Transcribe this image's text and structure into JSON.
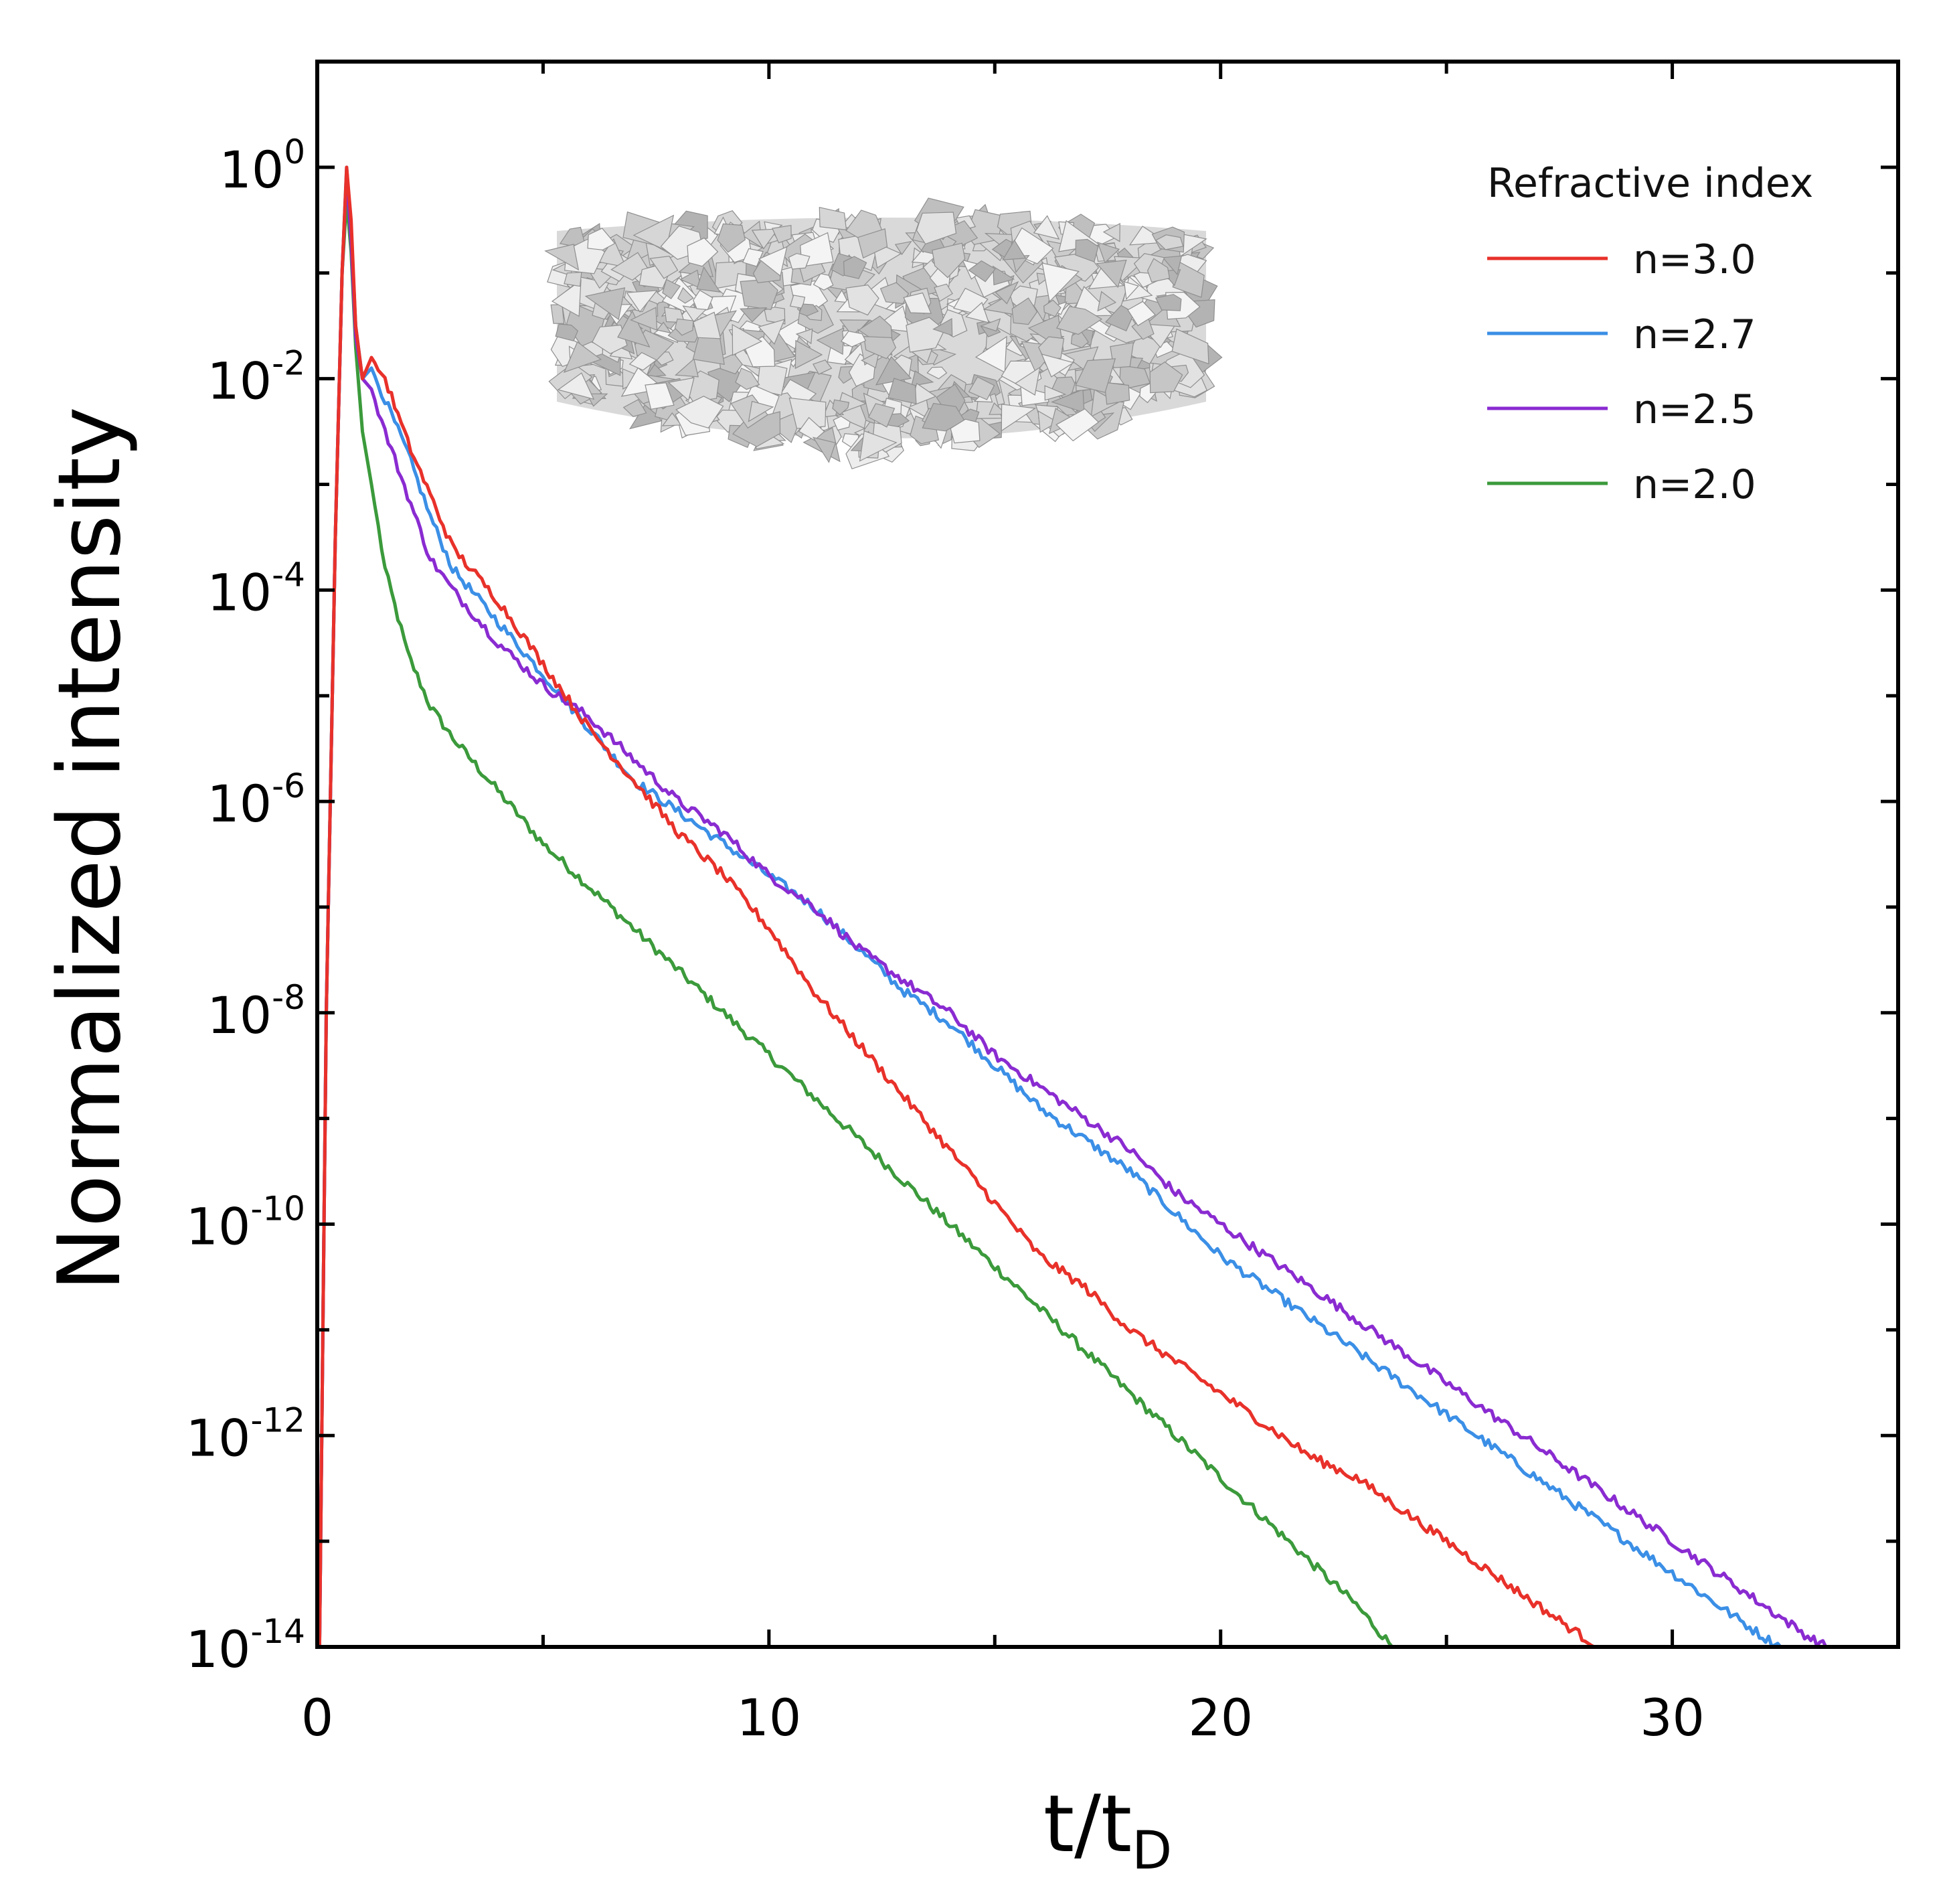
{
  "chart_data": {
    "type": "line",
    "title": "",
    "xlabel": "t/t",
    "xlabel_subscript": "D",
    "ylabel": "Normalized intensity",
    "xlim": [
      0,
      35
    ],
    "ylim_log10": [
      -14,
      1
    ],
    "y_scale": "log",
    "x_ticks": [
      0,
      10,
      20,
      30
    ],
    "x_tick_labels": [
      "0",
      "10",
      "20",
      "30"
    ],
    "y_tick_exponents": [
      0,
      -2,
      -4,
      -6,
      -8,
      -10,
      -12,
      -14
    ],
    "y_tick_base": "10",
    "y_tick_sup": [
      "0",
      "-2",
      "-4",
      "-6",
      "-8",
      "-10",
      "-12",
      "-14"
    ],
    "legend": {
      "title": "Refractive index",
      "position": "top-right"
    },
    "inset": "three-dimensional rendering of a disordered slab of packed polyhedral scatterers",
    "series": [
      {
        "name": "n=3.0",
        "color": "#e8312a",
        "x": [
          0.05,
          0.2,
          0.4,
          0.55,
          0.65,
          0.75,
          0.85,
          1.0,
          1.2,
          1.5,
          2.0,
          2.5,
          3.0,
          4.0,
          5.0,
          6.0,
          7.0,
          8.0,
          9.0,
          10.0,
          11.0,
          12.0,
          13.0,
          14.0,
          15.0,
          16.0,
          17.0,
          18.0,
          19.0,
          20.0,
          21.0,
          22.0,
          23.0,
          24.0,
          25.0,
          26.0,
          27.0,
          28.0,
          28.4
        ],
        "log10_y": [
          -14.0,
          -8.0,
          -3.5,
          -1.0,
          0.0,
          -0.5,
          -1.5,
          -2.0,
          -1.8,
          -2.0,
          -2.6,
          -3.1,
          -3.6,
          -4.1,
          -4.7,
          -5.3,
          -5.8,
          -6.3,
          -6.7,
          -7.2,
          -7.8,
          -8.3,
          -8.8,
          -9.3,
          -9.8,
          -10.3,
          -10.6,
          -11.0,
          -11.3,
          -11.6,
          -11.9,
          -12.2,
          -12.4,
          -12.7,
          -13.0,
          -13.3,
          -13.6,
          -13.9,
          -14.0
        ]
      },
      {
        "name": "n=2.7",
        "color": "#3b8fe6",
        "x": [
          0.05,
          0.2,
          0.4,
          0.55,
          0.65,
          0.75,
          0.85,
          1.0,
          1.2,
          1.5,
          2.0,
          2.5,
          3.0,
          4.0,
          5.0,
          6.0,
          7.0,
          8.0,
          9.0,
          10.0,
          11.0,
          12.0,
          13.0,
          14.0,
          15.0,
          16.0,
          17.0,
          18.0,
          19.0,
          20.0,
          21.0,
          22.0,
          23.0,
          24.0,
          25.0,
          26.0,
          27.0,
          28.0,
          29.0,
          30.0,
          31.0,
          32.0,
          32.4
        ],
        "log10_y": [
          -14.0,
          -8.0,
          -3.5,
          -1.0,
          0.0,
          -0.6,
          -1.5,
          -2.0,
          -1.9,
          -2.2,
          -2.7,
          -3.3,
          -3.8,
          -4.3,
          -4.8,
          -5.3,
          -5.8,
          -6.1,
          -6.4,
          -6.7,
          -7.0,
          -7.4,
          -7.8,
          -8.1,
          -8.5,
          -8.9,
          -9.2,
          -9.5,
          -9.9,
          -10.3,
          -10.6,
          -10.9,
          -11.2,
          -11.5,
          -11.8,
          -12.1,
          -12.4,
          -12.7,
          -13.0,
          -13.3,
          -13.6,
          -13.9,
          -14.0
        ]
      },
      {
        "name": "n=2.5",
        "color": "#8a2bd1",
        "x": [
          0.05,
          0.2,
          0.4,
          0.55,
          0.65,
          0.75,
          0.85,
          1.0,
          1.2,
          1.5,
          2.0,
          2.5,
          3.0,
          4.0,
          5.0,
          6.0,
          7.0,
          8.0,
          9.0,
          10.0,
          11.0,
          12.0,
          13.0,
          14.0,
          15.0,
          16.0,
          17.0,
          18.0,
          19.0,
          20.0,
          21.0,
          22.0,
          23.0,
          24.0,
          25.0,
          26.0,
          27.0,
          28.0,
          29.0,
          30.0,
          31.0,
          32.0,
          33.0,
          33.4
        ],
        "log10_y": [
          -14.0,
          -8.0,
          -3.5,
          -1.0,
          -0.05,
          -0.7,
          -1.6,
          -2.0,
          -2.1,
          -2.5,
          -3.1,
          -3.7,
          -4.0,
          -4.5,
          -4.9,
          -5.2,
          -5.6,
          -6.0,
          -6.3,
          -6.7,
          -7.0,
          -7.4,
          -7.7,
          -8.0,
          -8.4,
          -8.7,
          -9.0,
          -9.3,
          -9.7,
          -10.0,
          -10.3,
          -10.6,
          -10.9,
          -11.2,
          -11.5,
          -11.8,
          -12.1,
          -12.4,
          -12.7,
          -13.0,
          -13.3,
          -13.6,
          -13.9,
          -14.0
        ]
      },
      {
        "name": "n=2.0",
        "color": "#3b9a3b",
        "x": [
          0.05,
          0.2,
          0.4,
          0.55,
          0.65,
          0.75,
          0.85,
          1.0,
          1.2,
          1.5,
          2.0,
          2.5,
          3.0,
          4.0,
          5.0,
          6.0,
          7.0,
          8.0,
          9.0,
          10.0,
          11.0,
          12.0,
          13.0,
          14.0,
          15.0,
          16.0,
          17.0,
          18.0,
          19.0,
          20.0,
          21.0,
          22.0,
          23.0,
          23.8
        ],
        "log10_y": [
          -14.0,
          -8.0,
          -3.5,
          -1.0,
          -0.3,
          -0.8,
          -1.7,
          -2.5,
          -3.0,
          -3.8,
          -4.6,
          -5.1,
          -5.4,
          -5.9,
          -6.4,
          -6.8,
          -7.2,
          -7.6,
          -8.0,
          -8.4,
          -8.8,
          -9.2,
          -9.6,
          -10.0,
          -10.4,
          -10.8,
          -11.2,
          -11.6,
          -12.0,
          -12.4,
          -12.8,
          -13.2,
          -13.6,
          -14.0
        ]
      }
    ]
  }
}
